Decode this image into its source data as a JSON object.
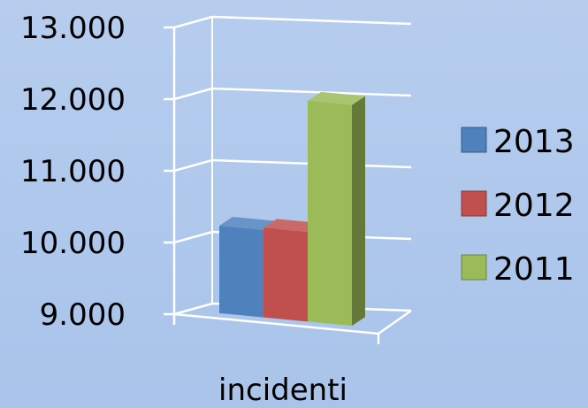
{
  "chart_data": {
    "type": "bar",
    "categories": [
      "incidenti"
    ],
    "series": [
      {
        "name": "2013",
        "values": [
          10220
        ],
        "color": "#4f81bd"
      },
      {
        "name": "2012",
        "values": [
          10250
        ],
        "color": "#c0504d"
      },
      {
        "name": "2011",
        "values": [
          12080
        ],
        "color": "#9bbb59"
      }
    ],
    "y_ticks": [
      "9.000",
      "10.000",
      "11.000",
      "12.000",
      "13.000"
    ],
    "ylim": [
      9000,
      13000
    ],
    "grid": true,
    "legend_position": "right",
    "style": "3d-column"
  }
}
